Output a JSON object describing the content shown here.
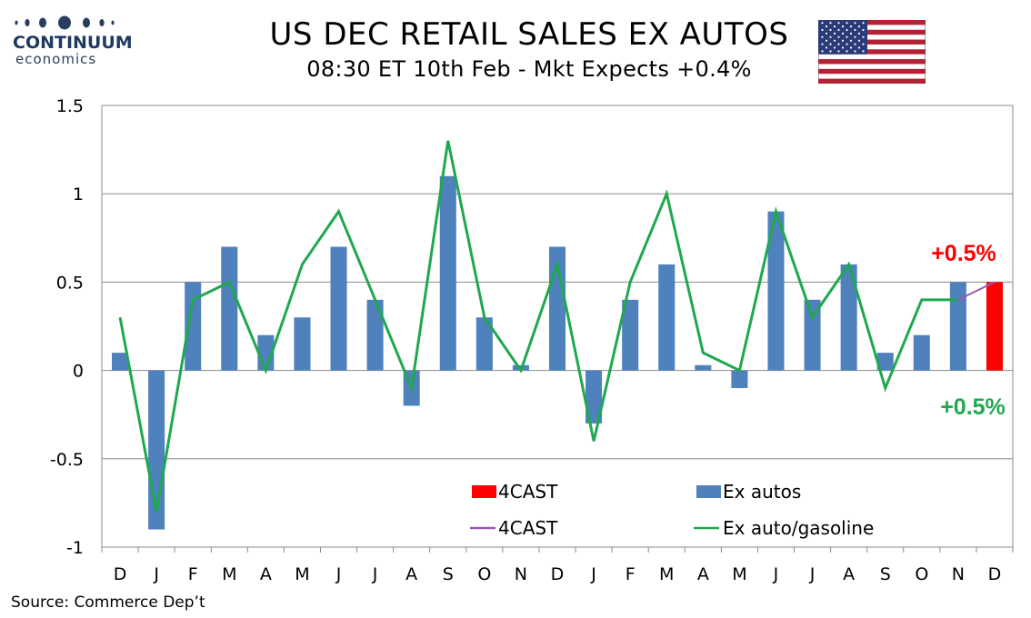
{
  "header": {
    "logo_top": "CONTINUUM",
    "logo_bottom": "economics",
    "title": "US DEC RETAIL SALES EX AUTOS",
    "subtitle": "08:30 ET 10th Feb - Mkt Expects +0.4%"
  },
  "footer": {
    "source": "Source: Commerce Dep’t"
  },
  "colors": {
    "bar": "#4f81bd",
    "forecast_bar": "#ff0000",
    "line": "#1fa84f",
    "forecast_line": "#9b59b6",
    "forecast_label": "#ff0000",
    "line_label": "#1fa84f"
  },
  "chart_data": {
    "type": "bar",
    "categories": [
      "D",
      "J",
      "F",
      "M",
      "A",
      "M",
      "J",
      "J",
      "A",
      "S",
      "O",
      "N",
      "D",
      "J",
      "F",
      "M",
      "A",
      "M",
      "J",
      "J",
      "A",
      "S",
      "O",
      "N",
      "D"
    ],
    "ylim": [
      -1,
      1.5
    ],
    "yticks": [
      "1.5",
      "1",
      "0.5",
      "0",
      "-0.5",
      "-1"
    ],
    "ytick_values": [
      1.5,
      1,
      0.5,
      0,
      -0.5,
      -1
    ],
    "grid": true,
    "legend_position": "bottom-center",
    "series": [
      {
        "name": "Ex autos",
        "type": "bar",
        "values": [
          0.1,
          -0.9,
          0.5,
          0.7,
          0.2,
          0.3,
          0.7,
          0.4,
          -0.2,
          1.1,
          0.3,
          0.03,
          0.7,
          -0.3,
          0.4,
          0.6,
          0.03,
          -0.1,
          0.9,
          0.4,
          0.6,
          0.1,
          0.2,
          0.5,
          null
        ]
      },
      {
        "name": "4CAST",
        "type": "bar",
        "values": [
          null,
          null,
          null,
          null,
          null,
          null,
          null,
          null,
          null,
          null,
          null,
          null,
          null,
          null,
          null,
          null,
          null,
          null,
          null,
          null,
          null,
          null,
          null,
          null,
          0.5
        ]
      },
      {
        "name": "Ex auto/gasoline",
        "type": "line",
        "values": [
          0.3,
          -0.8,
          0.4,
          0.5,
          0.0,
          0.6,
          0.9,
          0.4,
          -0.1,
          1.3,
          0.3,
          0.0,
          0.6,
          -0.4,
          0.5,
          1.0,
          0.1,
          0.0,
          0.9,
          0.3,
          0.6,
          -0.1,
          0.4,
          0.4,
          null
        ]
      },
      {
        "name": "4CAST",
        "type": "line",
        "values": [
          null,
          null,
          null,
          null,
          null,
          null,
          null,
          null,
          null,
          null,
          null,
          null,
          null,
          null,
          null,
          null,
          null,
          null,
          null,
          null,
          null,
          null,
          null,
          0.4,
          0.5
        ]
      }
    ],
    "legend": {
      "bar_forecast": "4CAST",
      "bar_actual": "Ex autos",
      "line_forecast": "4CAST",
      "line_actual": "Ex auto/gasoline"
    },
    "annotations": {
      "forecast_bar": "+0.5%",
      "forecast_line": "+0.5%"
    }
  }
}
